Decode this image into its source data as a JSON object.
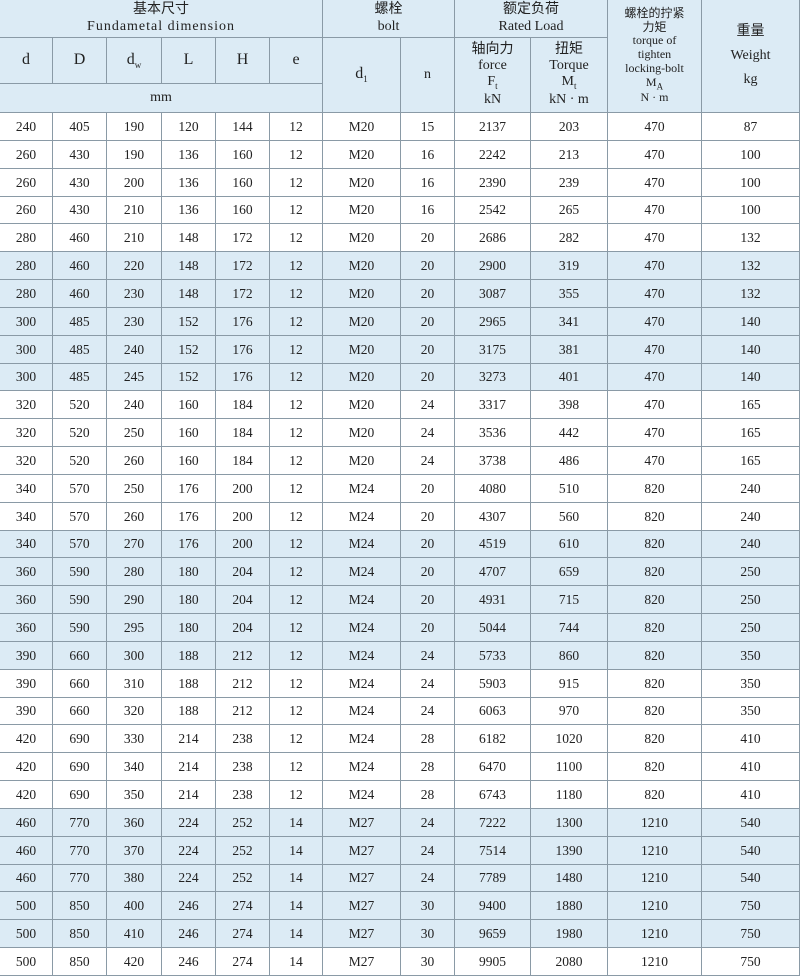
{
  "header": {
    "group_dimension": {
      "zh": "基本尺寸",
      "en": "Fundametal dimension"
    },
    "dimension_columns": [
      {
        "main": "d"
      },
      {
        "main": "D"
      },
      {
        "main": "d",
        "sub": "w"
      },
      {
        "main": "L"
      },
      {
        "main": "H"
      },
      {
        "main": "e"
      }
    ],
    "dimension_unit": "mm",
    "group_bolt": {
      "zh": "螺栓",
      "en": "bolt"
    },
    "bolt_columns": [
      {
        "main": "d",
        "sub": "1"
      },
      {
        "main": "n"
      }
    ],
    "group_load": {
      "zh": "额定负荷",
      "en": "Rated Load"
    },
    "load_columns": [
      {
        "zh": "轴向力",
        "en": "force",
        "main": "F",
        "sub": "t",
        "unit": "kN"
      },
      {
        "zh": "扭矩",
        "en": "Torque",
        "main": "M",
        "sub": "t",
        "unit": "kN · m"
      }
    ],
    "tightening": {
      "zh_lines": [
        "螺栓的拧紧",
        "力矩"
      ],
      "en_lines": [
        "torque of",
        "tighten",
        "locking-bolt"
      ],
      "main": "M",
      "sub": "A",
      "unit": "N · m"
    },
    "weight": {
      "zh": "重量",
      "en": "Weight",
      "unit": "kg"
    }
  },
  "table": {
    "rows": [
      [
        240,
        405,
        190,
        120,
        144,
        12,
        "M20",
        15,
        2137,
        203,
        470,
        87
      ],
      [
        260,
        430,
        190,
        136,
        160,
        12,
        "M20",
        16,
        2242,
        213,
        470,
        100
      ],
      [
        260,
        430,
        200,
        136,
        160,
        12,
        "M20",
        16,
        2390,
        239,
        470,
        100
      ],
      [
        260,
        430,
        210,
        136,
        160,
        12,
        "M20",
        16,
        2542,
        265,
        470,
        100
      ],
      [
        280,
        460,
        210,
        148,
        172,
        12,
        "M20",
        20,
        2686,
        282,
        470,
        132
      ],
      [
        280,
        460,
        220,
        148,
        172,
        12,
        "M20",
        20,
        2900,
        319,
        470,
        132
      ],
      [
        280,
        460,
        230,
        148,
        172,
        12,
        "M20",
        20,
        3087,
        355,
        470,
        132
      ],
      [
        300,
        485,
        230,
        152,
        176,
        12,
        "M20",
        20,
        2965,
        341,
        470,
        140
      ],
      [
        300,
        485,
        240,
        152,
        176,
        12,
        "M20",
        20,
        3175,
        381,
        470,
        140
      ],
      [
        300,
        485,
        245,
        152,
        176,
        12,
        "M20",
        20,
        3273,
        401,
        470,
        140
      ],
      [
        320,
        520,
        240,
        160,
        184,
        12,
        "M20",
        24,
        3317,
        398,
        470,
        165
      ],
      [
        320,
        520,
        250,
        160,
        184,
        12,
        "M20",
        24,
        3536,
        442,
        470,
        165
      ],
      [
        320,
        520,
        260,
        160,
        184,
        12,
        "M20",
        24,
        3738,
        486,
        470,
        165
      ],
      [
        340,
        570,
        250,
        176,
        200,
        12,
        "M24",
        20,
        4080,
        510,
        820,
        240
      ],
      [
        340,
        570,
        260,
        176,
        200,
        12,
        "M24",
        20,
        4307,
        560,
        820,
        240
      ],
      [
        340,
        570,
        270,
        176,
        200,
        12,
        "M24",
        20,
        4519,
        610,
        820,
        240
      ],
      [
        360,
        590,
        280,
        180,
        204,
        12,
        "M24",
        20,
        4707,
        659,
        820,
        250
      ],
      [
        360,
        590,
        290,
        180,
        204,
        12,
        "M24",
        20,
        4931,
        715,
        820,
        250
      ],
      [
        360,
        590,
        295,
        180,
        204,
        12,
        "M24",
        20,
        5044,
        744,
        820,
        250
      ],
      [
        390,
        660,
        300,
        188,
        212,
        12,
        "M24",
        24,
        5733,
        860,
        820,
        350
      ],
      [
        390,
        660,
        310,
        188,
        212,
        12,
        "M24",
        24,
        5903,
        915,
        820,
        350
      ],
      [
        390,
        660,
        320,
        188,
        212,
        12,
        "M24",
        24,
        6063,
        970,
        820,
        350
      ],
      [
        420,
        690,
        330,
        214,
        238,
        12,
        "M24",
        28,
        6182,
        1020,
        820,
        410
      ],
      [
        420,
        690,
        340,
        214,
        238,
        12,
        "M24",
        28,
        6470,
        1100,
        820,
        410
      ],
      [
        420,
        690,
        350,
        214,
        238,
        12,
        "M24",
        28,
        6743,
        1180,
        820,
        410
      ],
      [
        460,
        770,
        360,
        224,
        252,
        14,
        "M27",
        24,
        7222,
        1300,
        1210,
        540
      ],
      [
        460,
        770,
        370,
        224,
        252,
        14,
        "M27",
        24,
        7514,
        1390,
        1210,
        540
      ],
      [
        460,
        770,
        380,
        224,
        252,
        14,
        "M27",
        24,
        7789,
        1480,
        1210,
        540
      ],
      [
        500,
        850,
        400,
        246,
        274,
        14,
        "M27",
        30,
        9400,
        1880,
        1210,
        750
      ],
      [
        500,
        850,
        410,
        246,
        274,
        14,
        "M27",
        30,
        9659,
        1980,
        1210,
        750
      ],
      [
        500,
        850,
        420,
        246,
        274,
        14,
        "M27",
        30,
        9905,
        2080,
        1210,
        750
      ]
    ]
  }
}
